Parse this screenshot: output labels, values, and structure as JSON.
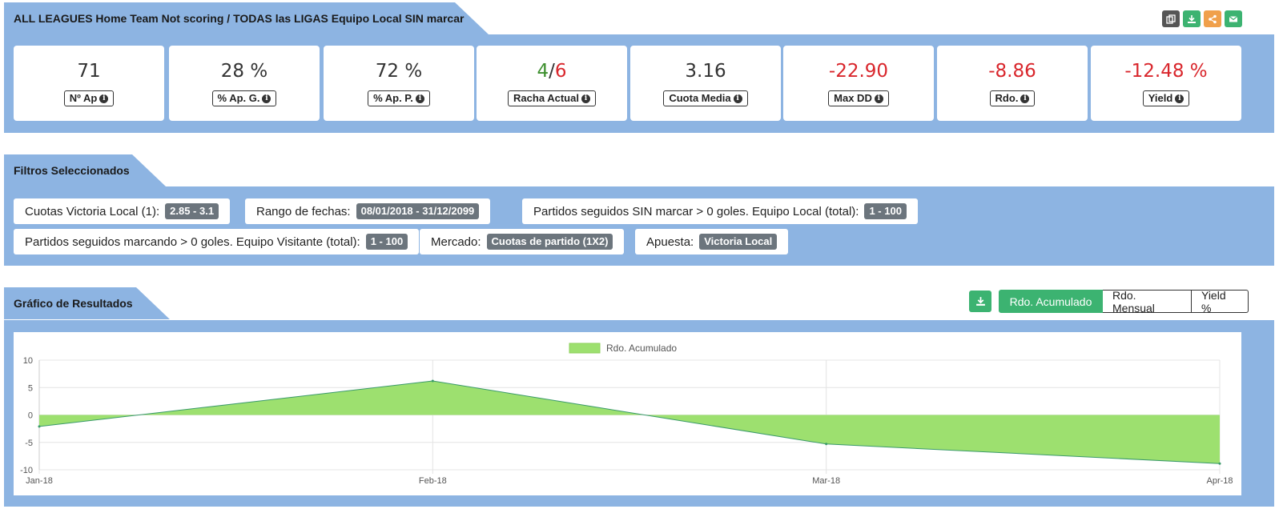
{
  "header": {
    "title": "ALL LEAGUES Home Team Not scoring / TODAS las LIGAS Equipo Local SIN marcar",
    "buttons": [
      {
        "icon": "copy-icon",
        "color": "#555555"
      },
      {
        "icon": "download-icon",
        "color": "#3cb371"
      },
      {
        "icon": "share-icon",
        "color": "#f0a04b"
      },
      {
        "icon": "email-icon",
        "color": "#3cb371"
      }
    ]
  },
  "stats": [
    {
      "value": "71",
      "label": "Nº Ap",
      "negative": false
    },
    {
      "value": "28 %",
      "label": "% Ap. G.",
      "negative": false
    },
    {
      "value": "72 %",
      "label": "% Ap. P.",
      "negative": false
    },
    {
      "value_win": "4",
      "value_sep": "/",
      "value_loss": "6",
      "label": "Racha Actual",
      "streak": true
    },
    {
      "value": "3.16",
      "label": "Cuota Media",
      "negative": false
    },
    {
      "value": "-22.90",
      "label": "Max DD",
      "negative": true
    },
    {
      "value": "-8.86",
      "label": "Rdo.",
      "negative": true
    },
    {
      "value": "-12.48 %",
      "label": "Yield",
      "negative": true
    }
  ],
  "filters": {
    "title": "Filtros Seleccionados",
    "items": [
      {
        "label": "Cuotas Victoria Local (1):",
        "value": "2.85 - 3.1"
      },
      {
        "label": "Rango de fechas:",
        "value": "08/01/2018 - 31/12/2099"
      },
      {
        "label": "Partidos seguidos SIN marcar > 0 goles. Equipo Local (total):",
        "value": "1 - 100"
      },
      {
        "label": "Partidos seguidos marcando > 0 goles. Equipo Visitante (total):",
        "value": "1 - 100"
      },
      {
        "label": "Mercado:",
        "value": "Cuotas de partido (1X2)"
      },
      {
        "label": "Apuesta:",
        "value": "Victoria Local"
      }
    ]
  },
  "results": {
    "title": "Gráfico de Resultados",
    "tabs": [
      "Rdo. Acumulado",
      "Rdo. Mensual",
      "Yield %"
    ],
    "active_tab": 0
  },
  "chart_data": {
    "type": "area",
    "x": [
      "Jan-18",
      "Feb-18",
      "Mar-18",
      "Apr-18"
    ],
    "series": [
      {
        "name": "Rdo. Acumulado",
        "values": [
          -2.1,
          6.2,
          -5.3,
          -8.86
        ],
        "color": "#9de06f",
        "line_color": "#3a9a6a"
      }
    ],
    "ylim": [
      -10,
      10
    ],
    "yticks": [
      10,
      5,
      0,
      -5,
      -10
    ],
    "grid": true,
    "legend": "top-center"
  }
}
